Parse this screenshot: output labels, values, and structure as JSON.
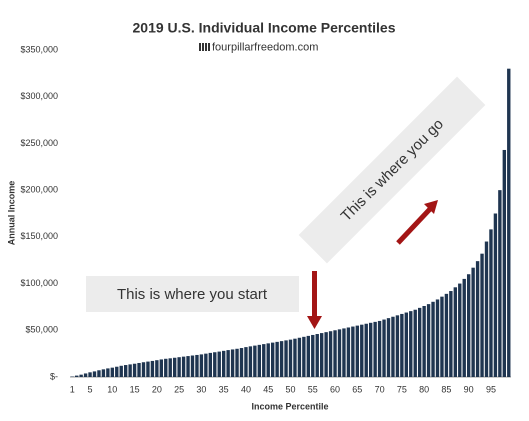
{
  "chart_data": {
    "type": "bar",
    "title": "2019 U.S. Individual Income Percentiles",
    "subtitle": "fourpillarfreedom.com",
    "x_label": "Income Percentile",
    "y_label": "Annual Income",
    "color": "#1f3550",
    "categories": [
      "1",
      null,
      null,
      null,
      "5",
      null,
      null,
      null,
      null,
      "10",
      null,
      null,
      null,
      null,
      "15",
      null,
      null,
      null,
      null,
      "20",
      null,
      null,
      null,
      null,
      "25",
      null,
      null,
      null,
      null,
      "30",
      null,
      null,
      null,
      null,
      "35",
      null,
      null,
      null,
      null,
      "40",
      null,
      null,
      null,
      null,
      "45",
      null,
      null,
      null,
      null,
      "50",
      null,
      null,
      null,
      null,
      "55",
      null,
      null,
      null,
      null,
      "60",
      null,
      null,
      null,
      null,
      "65",
      null,
      null,
      null,
      null,
      "70",
      null,
      null,
      null,
      null,
      "75",
      null,
      null,
      null,
      null,
      "80",
      null,
      null,
      null,
      null,
      "85",
      null,
      null,
      null,
      null,
      "90",
      null,
      null,
      null,
      null,
      "95",
      null,
      null,
      null,
      null
    ],
    "values": [
      500,
      1500,
      2500,
      3800,
      5000,
      6000,
      7200,
      8200,
      9200,
      10000,
      11000,
      12000,
      12800,
      13500,
      14200,
      15000,
      15800,
      16500,
      17200,
      18000,
      18800,
      19500,
      20000,
      20600,
      21200,
      21800,
      22400,
      23000,
      23600,
      24200,
      25000,
      25800,
      26500,
      27200,
      28000,
      28800,
      29500,
      30200,
      31000,
      32000,
      32800,
      33600,
      34400,
      35200,
      36000,
      36800,
      37600,
      38400,
      39200,
      40000,
      41000,
      42000,
      43000,
      44000,
      45000,
      46000,
      47000,
      48000,
      49000,
      50000,
      51000,
      52000,
      53000,
      54000,
      55000,
      56000,
      57000,
      58000,
      59000,
      60000,
      61500,
      63000,
      64500,
      66000,
      67500,
      69000,
      70500,
      72000,
      74000,
      76000,
      78000,
      80500,
      83000,
      86000,
      89000,
      92000,
      96000,
      100000,
      105000,
      110000,
      117000,
      124000,
      132000,
      145000,
      158000,
      175000,
      200000,
      243000,
      330000
    ],
    "ylim": [
      0,
      350000
    ],
    "yticks": [
      {
        "value": 0,
        "label": "$-"
      },
      {
        "value": 50000,
        "label": "$50,000"
      },
      {
        "value": 100000,
        "label": "$100,000"
      },
      {
        "value": 150000,
        "label": "$150,000"
      },
      {
        "value": 200000,
        "label": "$200,000"
      },
      {
        "value": 250000,
        "label": "$250,000"
      },
      {
        "value": 300000,
        "label": "$300,000"
      },
      {
        "value": 350000,
        "label": "$350,000"
      }
    ],
    "annotations": [
      "This is where you start",
      "This is where you go"
    ]
  }
}
